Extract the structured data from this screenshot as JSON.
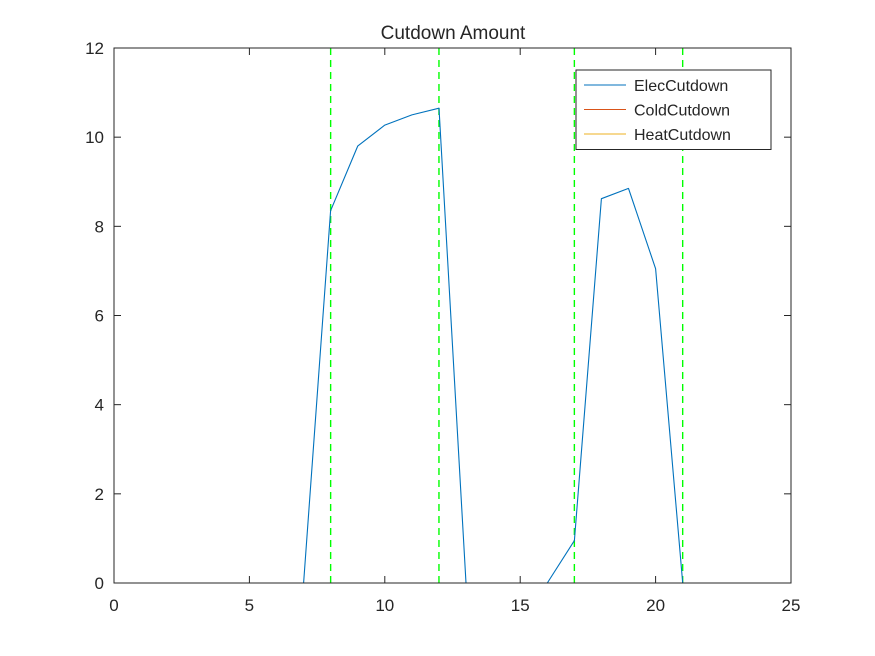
{
  "chart_data": {
    "type": "line",
    "title": "Cutdown Amount",
    "xlabel": "",
    "ylabel": "",
    "xlim": [
      0,
      25
    ],
    "ylim": [
      0,
      12
    ],
    "xticks": [
      0,
      5,
      10,
      15,
      20,
      25
    ],
    "yticks": [
      0,
      2,
      4,
      6,
      8,
      10,
      12
    ],
    "x": [
      1,
      2,
      3,
      4,
      5,
      6,
      7,
      8,
      9,
      10,
      11,
      12,
      13,
      14,
      15,
      16,
      17,
      18,
      19,
      20,
      21,
      22,
      23,
      24
    ],
    "series": [
      {
        "name": "ElecCutdown",
        "color": "#0072BD",
        "values": [
          0,
          0,
          0,
          0,
          0,
          0,
          0,
          8.35,
          9.8,
          10.27,
          10.5,
          10.65,
          0,
          0,
          0,
          0,
          0.95,
          8.62,
          8.85,
          7.05,
          0,
          0,
          0,
          0
        ]
      },
      {
        "name": "ColdCutdown",
        "color": "#D95319",
        "values": [
          0,
          0,
          0,
          0,
          0,
          0,
          0,
          0,
          0,
          0,
          0,
          0,
          0,
          0,
          0,
          0,
          0,
          0,
          0,
          0,
          0,
          0,
          0,
          0
        ]
      },
      {
        "name": "HeatCutdown",
        "color": "#EDB120",
        "values": [
          0,
          0,
          0,
          0,
          0,
          0,
          0,
          0,
          0,
          0,
          0,
          0,
          0,
          0,
          0,
          0,
          0,
          0,
          0,
          0,
          0,
          0,
          0,
          0
        ]
      }
    ],
    "vlines": {
      "x": [
        8,
        12,
        17,
        21
      ],
      "color": "#00FF00",
      "style": "dashed"
    },
    "legend": {
      "placement": "top-right",
      "entries": [
        "ElecCutdown",
        "ColdCutdown",
        "HeatCutdown"
      ]
    },
    "grid": false,
    "box": true
  }
}
